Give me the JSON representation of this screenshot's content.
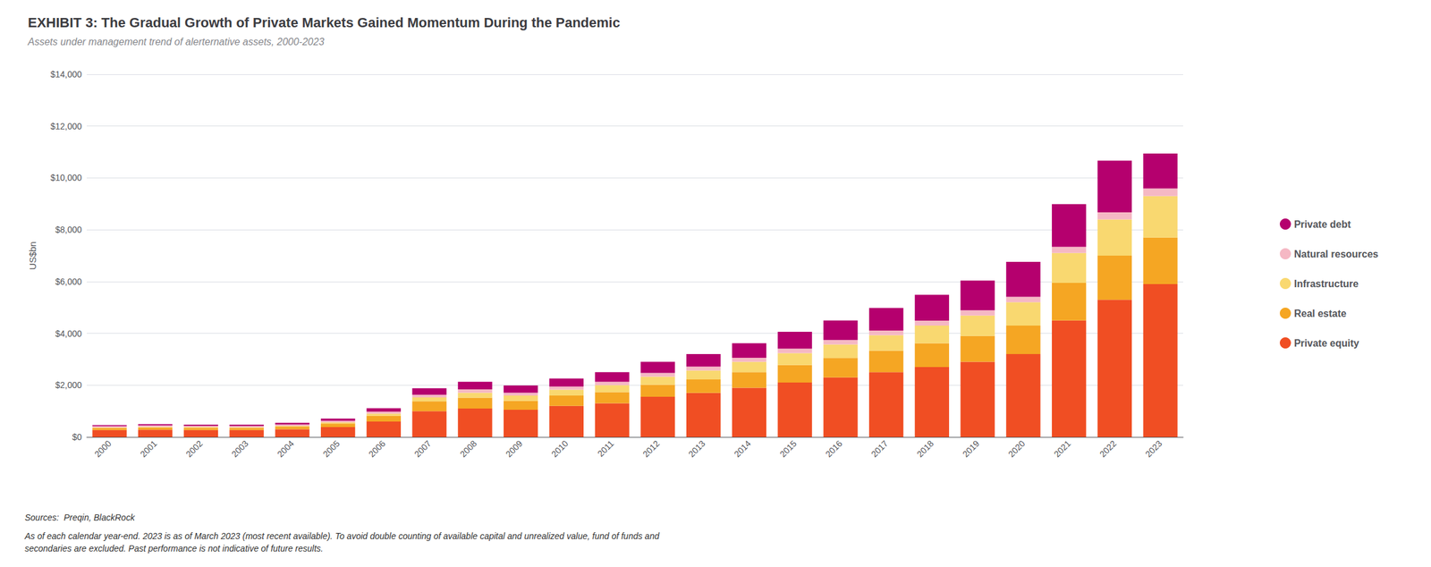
{
  "chart_data": {
    "type": "bar",
    "title": "EXHIBIT 3: The Gradual Growth of Private Markets Gained Momentum During the Pandemic",
    "subtitle": "Assets under management trend of alerternative assets, 2000-2023",
    "ylabel": "US$bn",
    "categories": [
      "2000",
      "2001",
      "2002",
      "2003",
      "2004",
      "2005",
      "2006",
      "2007",
      "2008",
      "2009",
      "2010",
      "2011",
      "2012",
      "2013",
      "2014",
      "2015",
      "2016",
      "2017",
      "2018",
      "2019",
      "2020",
      "2021",
      "2022",
      "2023"
    ],
    "series": [
      {
        "name": "Private equity",
        "color": "#F04E23",
        "values": [
          270,
          280,
          270,
          270,
          300,
          380,
          600,
          1000,
          1100,
          1050,
          1200,
          1300,
          1550,
          1700,
          1900,
          2100,
          2300,
          2500,
          2700,
          2900,
          3200,
          4500,
          5300,
          5900
        ]
      },
      {
        "name": "Real estate",
        "color": "#F5A623",
        "values": [
          80,
          90,
          85,
          80,
          100,
          140,
          220,
          380,
          420,
          350,
          400,
          430,
          470,
          520,
          600,
          680,
          750,
          830,
          920,
          1000,
          1100,
          1450,
          1700,
          1800
        ]
      },
      {
        "name": "Infrastructure",
        "color": "#F9D870",
        "values": [
          20,
          25,
          25,
          25,
          30,
          50,
          80,
          150,
          190,
          200,
          230,
          270,
          310,
          350,
          400,
          460,
          520,
          600,
          680,
          790,
          900,
          1150,
          1400,
          1600
        ]
      },
      {
        "name": "Natural resources",
        "color": "#F5B8C4",
        "values": [
          50,
          55,
          50,
          50,
          55,
          60,
          80,
          100,
          130,
          110,
          120,
          130,
          140,
          150,
          160,
          170,
          175,
          180,
          190,
          200,
          210,
          240,
          270,
          290
        ]
      },
      {
        "name": "Private debt",
        "color": "#B5006E",
        "values": [
          40,
          45,
          50,
          55,
          65,
          80,
          130,
          250,
          290,
          280,
          310,
          370,
          430,
          480,
          560,
          650,
          750,
          870,
          1000,
          1150,
          1350,
          1650,
          2000,
          1350
        ]
      }
    ],
    "stacked": true,
    "ylim": [
      0,
      14000
    ],
    "yticks": [
      {
        "value": 0,
        "label": "$0"
      },
      {
        "value": 2000,
        "label": "$2,000"
      },
      {
        "value": 4000,
        "label": "$4,000"
      },
      {
        "value": 6000,
        "label": "$6,000"
      },
      {
        "value": 8000,
        "label": "$8,000"
      },
      {
        "value": 10000,
        "label": "$10,000"
      },
      {
        "value": 12000,
        "label": "$12,000"
      },
      {
        "value": 14000,
        "label": "$14,000"
      }
    ],
    "grid": true,
    "legend": "right",
    "annotations": [
      "Sources:  Preqin, BlackRock",
      "As of each calendar year-end. 2023 is as of March 2023 (most recent available). To avoid double counting of available capital and unrealized value, fund of funds and\nsecondaries are excluded. Past performance is not indicative of future results."
    ]
  }
}
